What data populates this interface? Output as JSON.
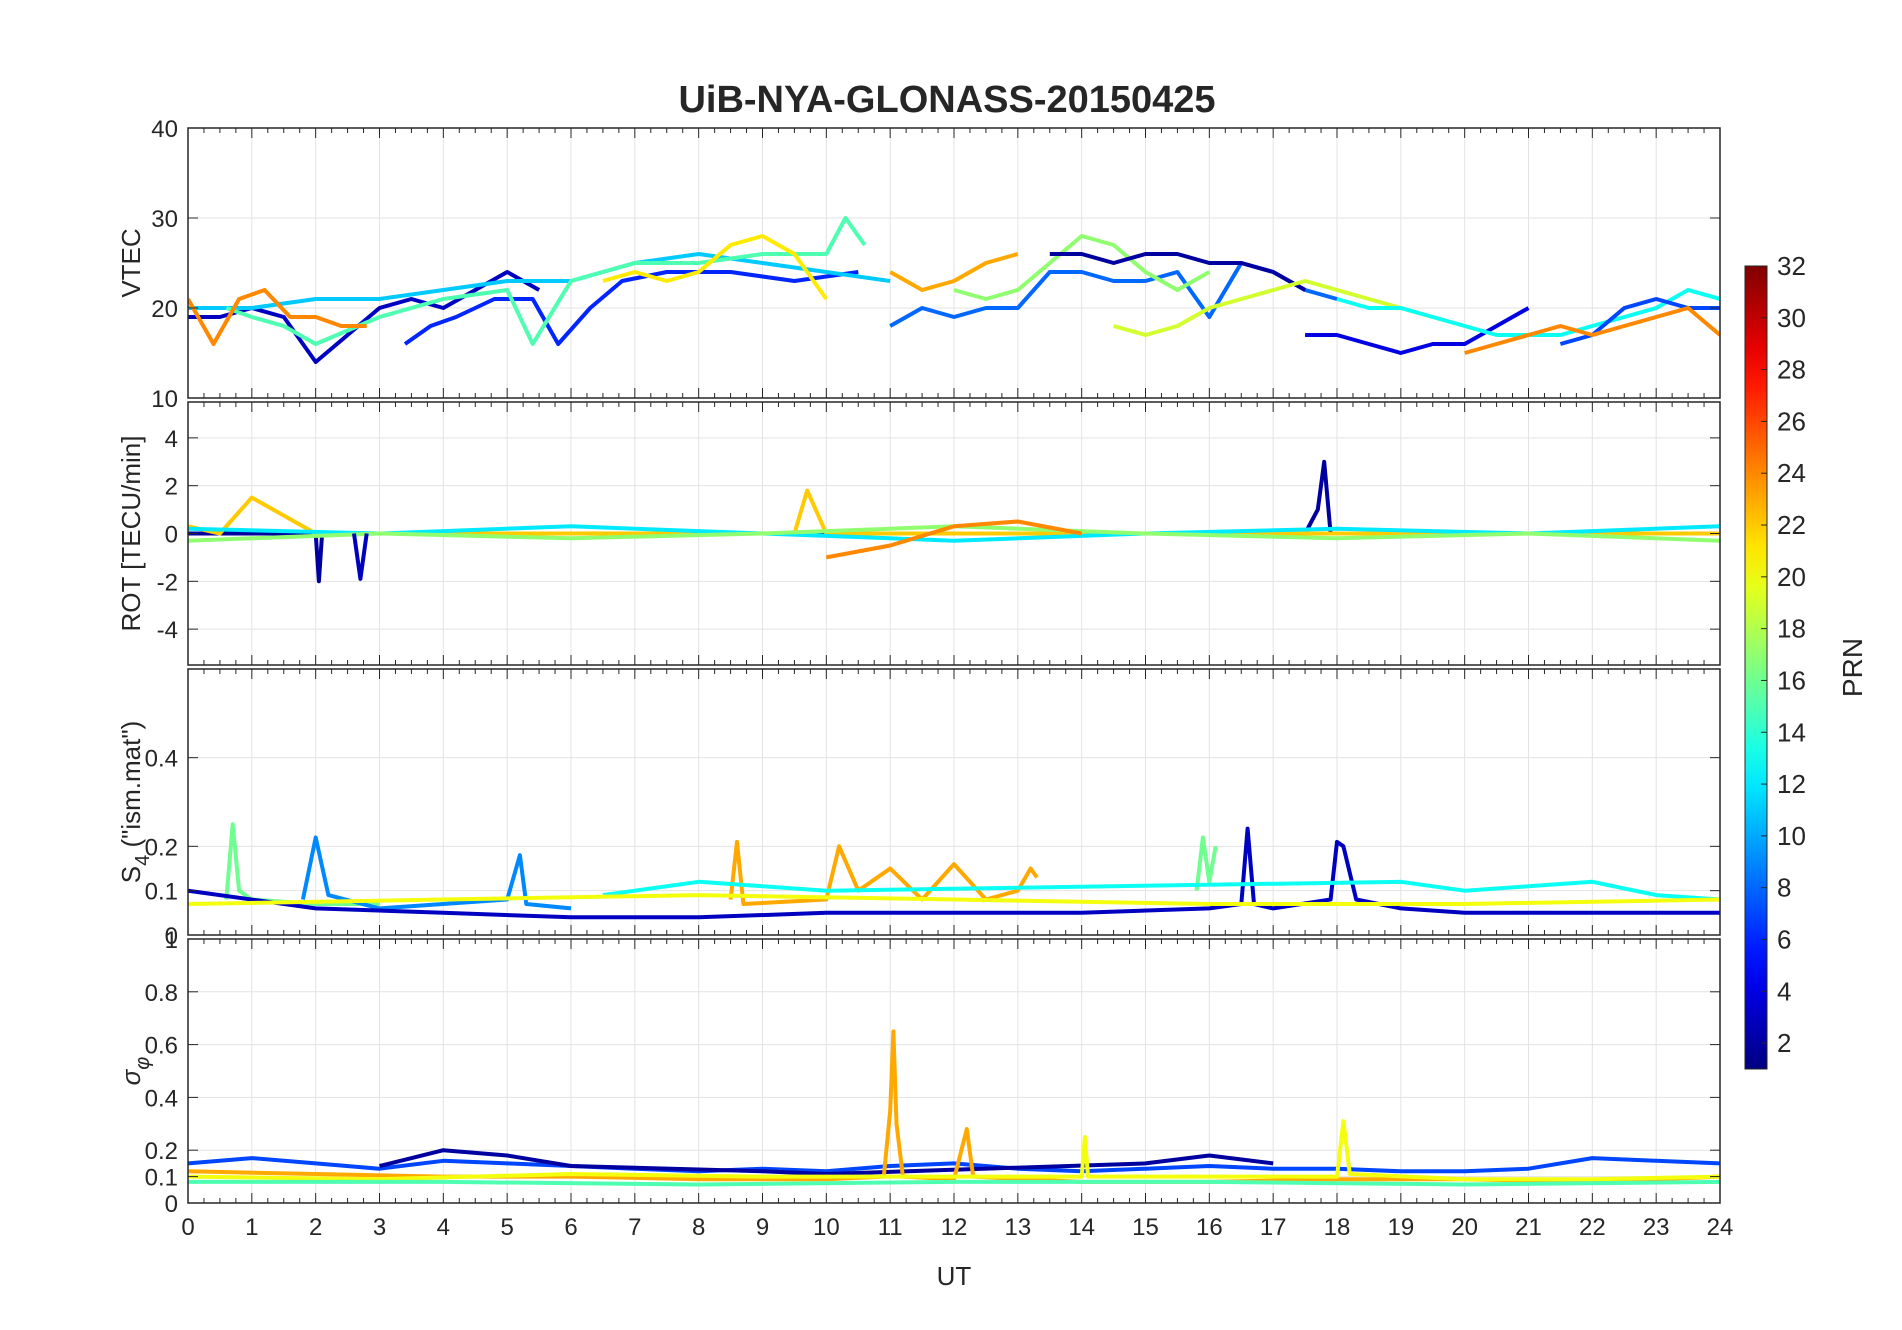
{
  "figure": {
    "title": "UiB-NYA-GLONASS-20150425",
    "xlabel": "UT",
    "x_ticks": [
      "0",
      "1",
      "2",
      "3",
      "4",
      "5",
      "6",
      "7",
      "8",
      "9",
      "10",
      "11",
      "12",
      "13",
      "14",
      "15",
      "16",
      "17",
      "18",
      "19",
      "20",
      "21",
      "22",
      "23",
      "24"
    ]
  },
  "colorbar": {
    "label": "PRN",
    "range": [
      1,
      32
    ],
    "ticks": [
      "2",
      "4",
      "6",
      "8",
      "10",
      "12",
      "14",
      "16",
      "18",
      "20",
      "22",
      "24",
      "26",
      "28",
      "30",
      "32"
    ],
    "colormap": "jet"
  },
  "panels": [
    {
      "ylabel": "VTEC",
      "ylim": [
        10,
        40
      ],
      "y_ticks": [
        "10",
        "20",
        "30",
        "40"
      ]
    },
    {
      "ylabel": "ROT [TECU/min]",
      "ylim": [
        -5.5,
        5.5
      ],
      "y_ticks": [
        "-4",
        "-2",
        "0",
        "2",
        "4"
      ]
    },
    {
      "ylabel_main": "S",
      "ylabel_sub": "4",
      "ylabel_rest": " (\"ism.mat\")",
      "ylim": [
        0,
        0.6
      ],
      "y_ticks": [
        "0",
        "0.1",
        "0.2",
        "0.4"
      ]
    },
    {
      "ylabel_main": "σ",
      "ylabel_sub": "φ",
      "ylim": [
        0,
        1
      ],
      "y_ticks": [
        "0",
        "0.1",
        "0.2",
        "0.4",
        "0.6",
        "0.8",
        "1"
      ]
    }
  ],
  "chart_data": [
    {
      "type": "line",
      "title": "UiB-NYA-GLONASS-20150425",
      "xlabel": "",
      "ylabel": "VTEC",
      "xlim": [
        0,
        24
      ],
      "ylim": [
        10,
        40
      ],
      "grid": true,
      "color_by": "PRN",
      "series": [
        {
          "prn": 3,
          "x": [
            0,
            0.5,
            1,
            1.5,
            2,
            2.5,
            3,
            3.5,
            4,
            4.5,
            5,
            5.5
          ],
          "y": [
            19,
            19,
            20,
            19,
            14,
            17,
            20,
            21,
            20,
            22,
            24,
            22
          ]
        },
        {
          "prn": 6,
          "x": [
            3.4,
            3.8,
            4.2,
            4.8,
            5.4,
            5.8,
            6.3,
            6.8,
            7.5,
            8.5,
            9.5,
            10.5
          ],
          "y": [
            16,
            18,
            19,
            21,
            21,
            16,
            20,
            23,
            24,
            24,
            23,
            24
          ]
        },
        {
          "prn": 11,
          "x": [
            0,
            1,
            2,
            3,
            4,
            5,
            6,
            7,
            8,
            9,
            10,
            11
          ],
          "y": [
            20,
            20,
            21,
            21,
            22,
            23,
            23,
            25,
            26,
            25,
            24,
            23
          ]
        },
        {
          "prn": 15,
          "x": [
            0.6,
            1,
            1.5,
            2,
            3,
            4,
            5,
            5.4,
            6,
            7,
            8,
            9,
            10,
            10.3,
            10.6
          ],
          "y": [
            20,
            19,
            18,
            16,
            19,
            21,
            22,
            16,
            23,
            25,
            25,
            26,
            26,
            30,
            27
          ]
        },
        {
          "prn": 24,
          "x": [
            0,
            0.4,
            0.8,
            1.2,
            1.6,
            2,
            2.4,
            2.8
          ],
          "y": [
            21,
            16,
            21,
            22,
            19,
            19,
            18,
            18
          ]
        },
        {
          "prn": 21,
          "x": [
            6.5,
            7,
            7.5,
            8,
            8.5,
            9,
            9.5,
            10
          ],
          "y": [
            23,
            24,
            23,
            24,
            27,
            28,
            26,
            21
          ]
        },
        {
          "prn": 8,
          "x": [
            11,
            11.5,
            12,
            12.5,
            13,
            13.5,
            14,
            14.5,
            15,
            15.5,
            16,
            16.5,
            17,
            17.5,
            18
          ],
          "y": [
            18,
            20,
            19,
            20,
            20,
            24,
            24,
            23,
            23,
            24,
            19,
            25,
            24,
            22,
            21
          ]
        },
        {
          "prn": 23,
          "x": [
            11,
            11.5,
            12,
            12.5,
            13
          ],
          "y": [
            24,
            22,
            23,
            25,
            26
          ]
        },
        {
          "prn": 17,
          "x": [
            12,
            12.5,
            13,
            13.5,
            14,
            14.5,
            15,
            15.5,
            16
          ],
          "y": [
            22,
            21,
            22,
            25,
            28,
            27,
            24,
            22,
            24
          ]
        },
        {
          "prn": 2,
          "x": [
            13.5,
            14,
            14.5,
            15,
            15.5,
            16,
            16.5,
            17,
            17.5
          ],
          "y": [
            26,
            26,
            25,
            26,
            26,
            25,
            25,
            24,
            22
          ]
        },
        {
          "prn": 19,
          "x": [
            14.5,
            15,
            15.5,
            16,
            16.5,
            17,
            17.5,
            18,
            18.5,
            19,
            19.5,
            20,
            20.5,
            21
          ],
          "y": [
            18,
            17,
            18,
            20,
            21,
            22,
            23,
            22,
            21,
            20,
            19,
            18,
            17,
            17
          ]
        },
        {
          "prn": 4,
          "x": [
            17.5,
            18,
            18.5,
            19,
            19.5,
            20,
            20.5,
            21
          ],
          "y": [
            17,
            17,
            16,
            15,
            16,
            16,
            18,
            20
          ]
        },
        {
          "prn": 13,
          "x": [
            18,
            18.5,
            19,
            19.5,
            20,
            20.5,
            21,
            21.5,
            22,
            22.5,
            23,
            23.5,
            24
          ],
          "y": [
            21,
            20,
            20,
            19,
            18,
            17,
            17,
            17,
            18,
            19,
            20,
            22,
            21
          ]
        },
        {
          "prn": 7,
          "x": [
            21.5,
            22,
            22.5,
            23,
            23.5,
            24
          ],
          "y": [
            16,
            17,
            20,
            21,
            20,
            20
          ]
        },
        {
          "prn": 24,
          "x": [
            20,
            20.5,
            21,
            21.5,
            22,
            22.5,
            23,
            23.5,
            24
          ],
          "y": [
            15,
            16,
            17,
            18,
            17,
            18,
            19,
            20,
            17
          ]
        }
      ]
    },
    {
      "type": "line",
      "xlabel": "",
      "ylabel": "ROT [TECU/min]",
      "xlim": [
        0,
        24
      ],
      "ylim": [
        -5.5,
        5.5
      ],
      "grid": true,
      "color_by": "PRN",
      "series": [
        {
          "prn": 2,
          "x": [
            0,
            2,
            2.05,
            2.1,
            4,
            6,
            8,
            10,
            12,
            14,
            16,
            17.5,
            17.7,
            17.8,
            17.9,
            18,
            20,
            22,
            24
          ],
          "y": [
            0,
            0,
            -2,
            0,
            0,
            0,
            0,
            0,
            0,
            0,
            0,
            0,
            1,
            3,
            0,
            0,
            0,
            0,
            0
          ]
        },
        {
          "prn": 22,
          "x": [
            0,
            0.5,
            1,
            2,
            4,
            6,
            8,
            9.5,
            9.7,
            10,
            12,
            14,
            16,
            18,
            20,
            22,
            24
          ],
          "y": [
            0.3,
            0,
            1.5,
            0,
            0,
            0,
            0,
            0,
            1.8,
            0,
            0,
            0,
            0,
            0,
            0,
            0,
            0
          ]
        },
        {
          "prn": 12,
          "x": [
            0,
            3,
            6,
            9,
            12,
            15,
            18,
            21,
            24
          ],
          "y": [
            0.2,
            0,
            0.3,
            0,
            -0.3,
            0,
            0.2,
            0,
            0.3
          ]
        },
        {
          "prn": 17,
          "x": [
            0,
            3,
            6,
            9,
            12,
            15,
            18,
            21,
            24
          ],
          "y": [
            -0.3,
            0,
            -0.2,
            0,
            0.3,
            0,
            -0.2,
            0,
            -0.3
          ]
        },
        {
          "prn": 24,
          "x": [
            10,
            11,
            12,
            13,
            14
          ],
          "y": [
            -1,
            -0.5,
            0.3,
            0.5,
            0
          ]
        },
        {
          "prn": 3,
          "x": [
            2.6,
            2.7,
            2.8
          ],
          "y": [
            0,
            -1.9,
            0
          ]
        }
      ]
    },
    {
      "type": "line",
      "xlabel": "",
      "ylabel": "S4 (\"ism.mat\")",
      "xlim": [
        0,
        24
      ],
      "ylim": [
        0,
        0.6
      ],
      "grid": true,
      "color_by": "PRN",
      "series": [
        {
          "prn": 16,
          "x": [
            0.6,
            0.7,
            0.8,
            1,
            2,
            3
          ],
          "y": [
            0.08,
            0.25,
            0.1,
            0.08,
            0.07,
            0.07
          ]
        },
        {
          "prn": 9,
          "x": [
            1.8,
            2,
            2.2,
            3,
            4,
            5,
            5.2,
            5.3,
            6
          ],
          "y": [
            0.08,
            0.22,
            0.09,
            0.06,
            0.07,
            0.08,
            0.18,
            0.07,
            0.06
          ]
        },
        {
          "prn": 3,
          "x": [
            0,
            2,
            4,
            6,
            8,
            10,
            12,
            14,
            16,
            16.5,
            16.6,
            16.7,
            17,
            17.9,
            18,
            18.1,
            18.3,
            19,
            20,
            22,
            24
          ],
          "y": [
            0.1,
            0.06,
            0.05,
            0.04,
            0.04,
            0.05,
            0.05,
            0.05,
            0.06,
            0.07,
            0.24,
            0.07,
            0.06,
            0.08,
            0.21,
            0.2,
            0.08,
            0.06,
            0.05,
            0.05,
            0.05
          ]
        },
        {
          "prn": 23,
          "x": [
            8.5,
            8.6,
            8.7,
            10,
            10.2,
            10.5,
            11,
            11.5,
            12,
            12.5,
            13,
            13.2,
            13.3
          ],
          "y": [
            0.08,
            0.21,
            0.07,
            0.08,
            0.2,
            0.1,
            0.15,
            0.08,
            0.16,
            0.08,
            0.1,
            0.15,
            0.13
          ]
        },
        {
          "prn": 16,
          "x": [
            15.8,
            15.9,
            16,
            16.1
          ],
          "y": [
            0.1,
            0.22,
            0.12,
            0.2
          ]
        },
        {
          "prn": 13,
          "x": [
            6.5,
            7,
            8,
            9,
            10,
            19,
            20,
            21,
            22,
            23,
            24
          ],
          "y": [
            0.09,
            0.1,
            0.12,
            0.11,
            0.1,
            0.12,
            0.1,
            0.11,
            0.12,
            0.09,
            0.08
          ]
        },
        {
          "prn": 20,
          "x": [
            0,
            4,
            8,
            12,
            16,
            20,
            24
          ],
          "y": [
            0.07,
            0.08,
            0.09,
            0.08,
            0.07,
            0.07,
            0.08
          ]
        }
      ]
    },
    {
      "type": "line",
      "xlabel": "UT",
      "ylabel": "σφ",
      "xlim": [
        0,
        24
      ],
      "ylim": [
        0,
        1
      ],
      "grid": true,
      "color_by": "PRN",
      "series": [
        {
          "prn": 7,
          "x": [
            0,
            1,
            2,
            3,
            4,
            5,
            6,
            7,
            8,
            9,
            10,
            11,
            12,
            13,
            14,
            15,
            16,
            17,
            18,
            19,
            20,
            21,
            22,
            23,
            24
          ],
          "y": [
            0.15,
            0.17,
            0.15,
            0.13,
            0.16,
            0.15,
            0.14,
            0.13,
            0.12,
            0.13,
            0.12,
            0.14,
            0.15,
            0.13,
            0.12,
            0.13,
            0.14,
            0.13,
            0.13,
            0.12,
            0.12,
            0.13,
            0.17,
            0.16,
            0.15
          ]
        },
        {
          "prn": 2,
          "x": [
            3,
            4,
            5,
            6,
            9,
            10,
            15,
            16,
            17
          ],
          "y": [
            0.14,
            0.2,
            0.18,
            0.14,
            0.12,
            0.11,
            0.15,
            0.18,
            0.15
          ]
        },
        {
          "prn": 23,
          "x": [
            0,
            2,
            4,
            6,
            8,
            10,
            10.9,
            11,
            11.05,
            11.1,
            11.2,
            12,
            12.2,
            12.3,
            14,
            16,
            18,
            20,
            22,
            24
          ],
          "y": [
            0.12,
            0.11,
            0.1,
            0.1,
            0.09,
            0.09,
            0.1,
            0.35,
            0.65,
            0.3,
            0.1,
            0.09,
            0.28,
            0.1,
            0.08,
            0.08,
            0.09,
            0.09,
            0.08,
            0.1
          ]
        },
        {
          "prn": 20,
          "x": [
            0,
            3,
            6,
            9,
            12,
            14,
            14.05,
            14.1,
            16,
            18,
            18.1,
            18.2,
            20,
            22,
            24
          ],
          "y": [
            0.1,
            0.09,
            0.11,
            0.1,
            0.1,
            0.1,
            0.25,
            0.1,
            0.1,
            0.1,
            0.31,
            0.11,
            0.09,
            0.09,
            0.1
          ]
        },
        {
          "prn": 15,
          "x": [
            0,
            4,
            8,
            12,
            16,
            20,
            24
          ],
          "y": [
            0.08,
            0.08,
            0.07,
            0.08,
            0.08,
            0.07,
            0.08
          ]
        }
      ]
    }
  ]
}
